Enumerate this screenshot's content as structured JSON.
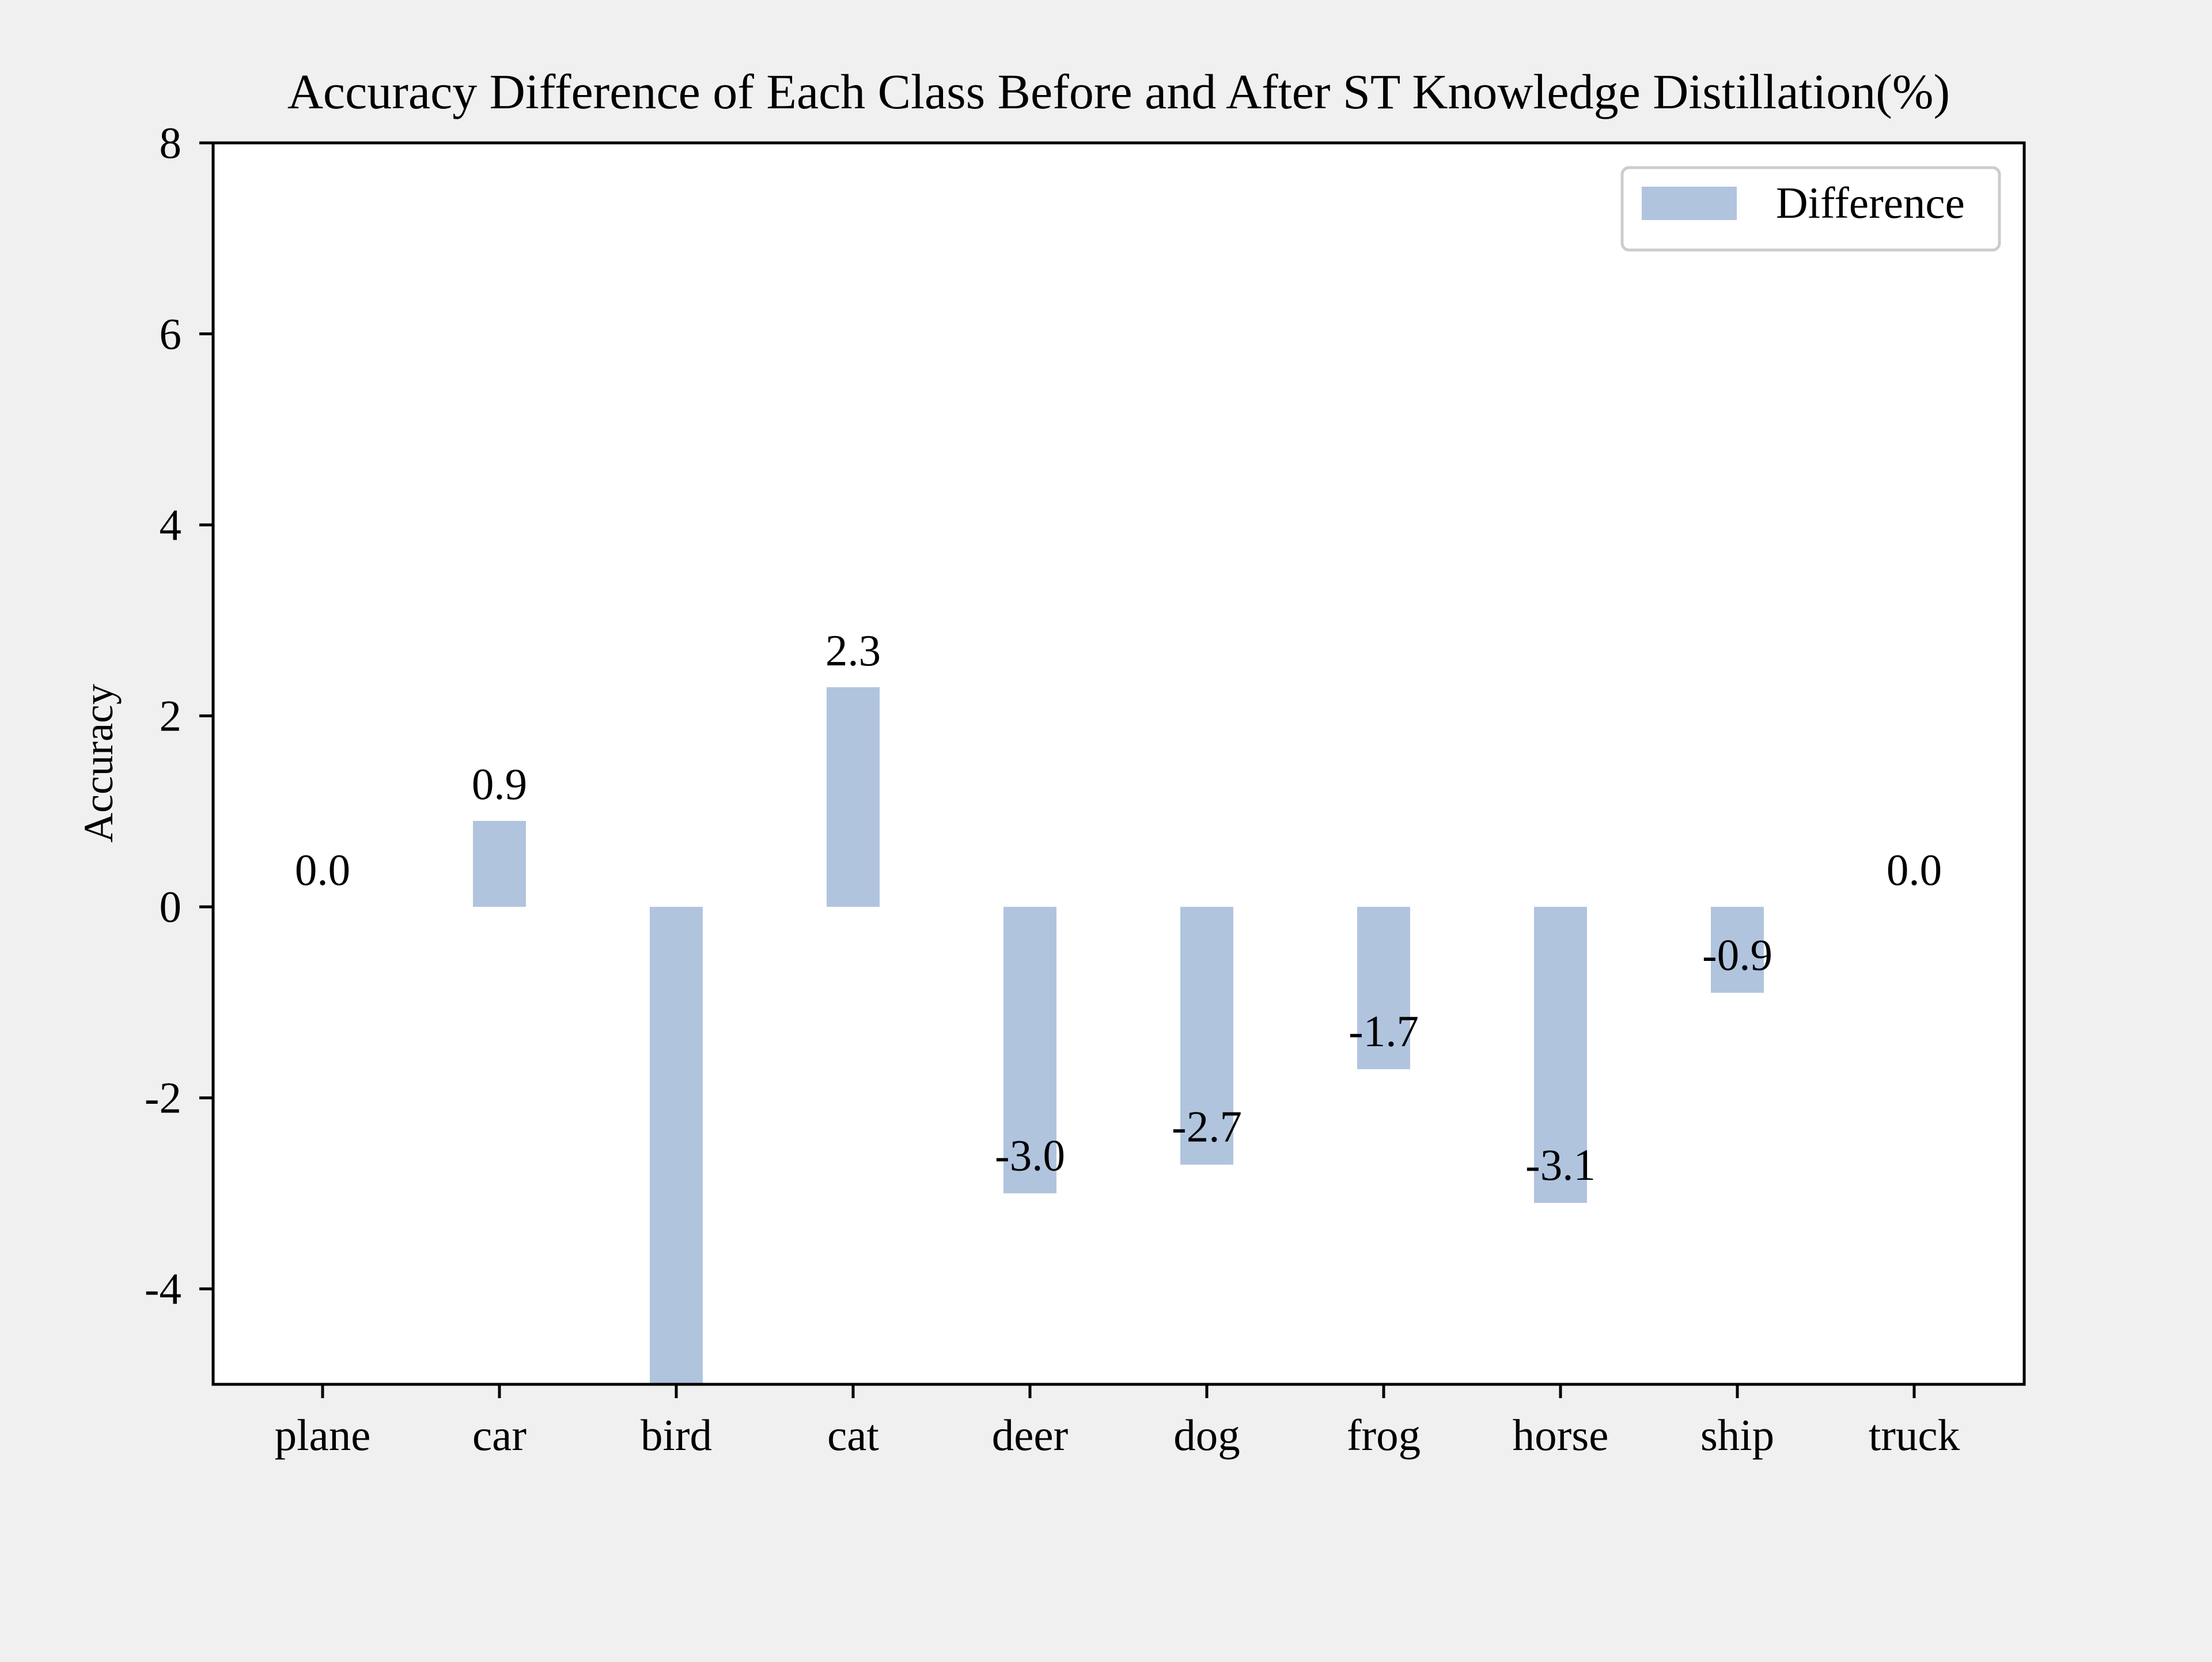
{
  "chart_data": {
    "type": "bar",
    "title": "Accuracy Difference of Each Class Before and After ST Knowledge Distillation(%)",
    "xlabel": "",
    "ylabel": "Accuracy",
    "categories": [
      "plane",
      "car",
      "bird",
      "cat",
      "deer",
      "dog",
      "frog",
      "horse",
      "ship",
      "truck"
    ],
    "series": [
      {
        "name": "Difference",
        "color": "#b0c4de",
        "values": [
          0.0,
          0.9,
          -5.3,
          2.3,
          -3.0,
          -2.7,
          -1.7,
          -3.1,
          -0.9,
          0.0
        ],
        "labels": [
          "0.0",
          "0.9",
          "",
          "2.3",
          "-3.0",
          "-2.7",
          "-1.7",
          "-3.1",
          "-0.9",
          "0.0"
        ]
      }
    ],
    "ylim": [
      -5,
      8
    ],
    "yticks": [
      -4,
      -2,
      0,
      2,
      4,
      6,
      8
    ],
    "ytick_labels": [
      "-4",
      "-2",
      "0",
      "2",
      "4",
      "6",
      "8"
    ],
    "grid": false,
    "legend": {
      "position": "top-right",
      "entries": [
        "Difference"
      ]
    }
  }
}
